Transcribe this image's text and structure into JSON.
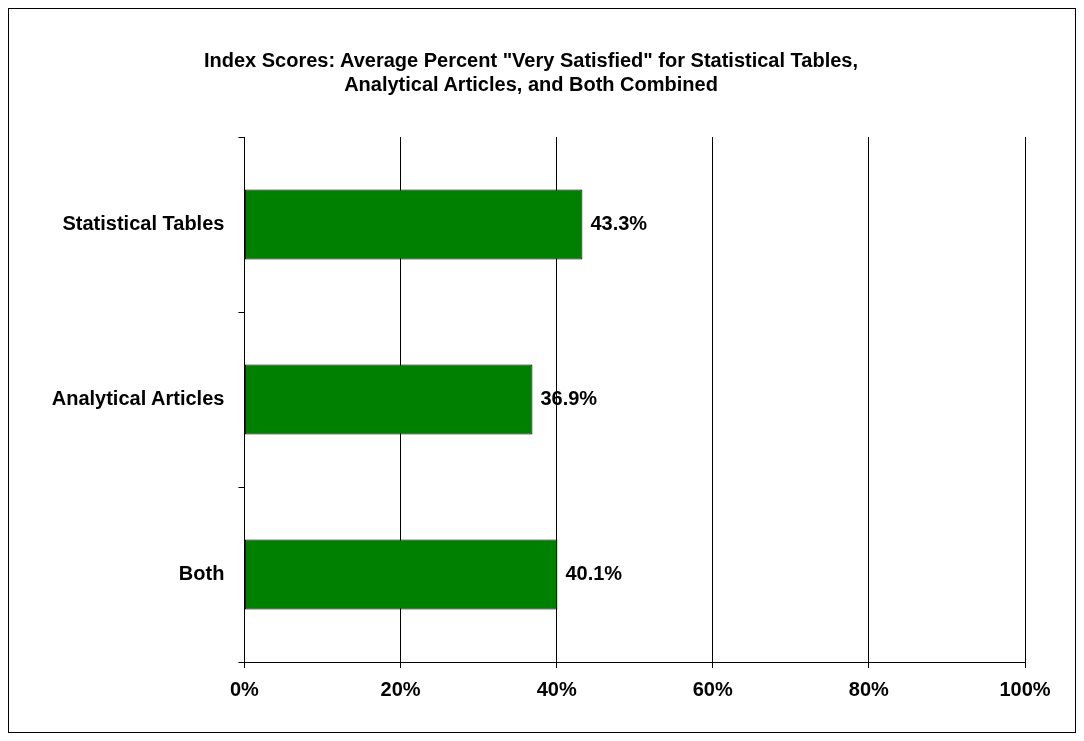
{
  "chart_data": {
    "type": "bar",
    "orientation": "horizontal",
    "title": "Index Scores: Average Percent \"Very Satisfied\" for Statistical Tables, Analytical Articles, and Both Combined",
    "categories": [
      "Statistical Tables",
      "Analytical Articles",
      "Both"
    ],
    "values": [
      43.3,
      36.9,
      40.1
    ],
    "color": "#008000",
    "value_labels": [
      "43.3%",
      "36.9%",
      "40.1%"
    ],
    "xlim": [
      0,
      100
    ],
    "xticks": [
      {
        "value": 0,
        "label": "0%"
      },
      {
        "value": 20,
        "label": "20%"
      },
      {
        "value": 40,
        "label": "40%"
      },
      {
        "value": 60,
        "label": "60%"
      },
      {
        "value": 80,
        "label": "80%"
      },
      {
        "value": 100,
        "label": "100%"
      }
    ],
    "grid": "x",
    "legend": false
  }
}
